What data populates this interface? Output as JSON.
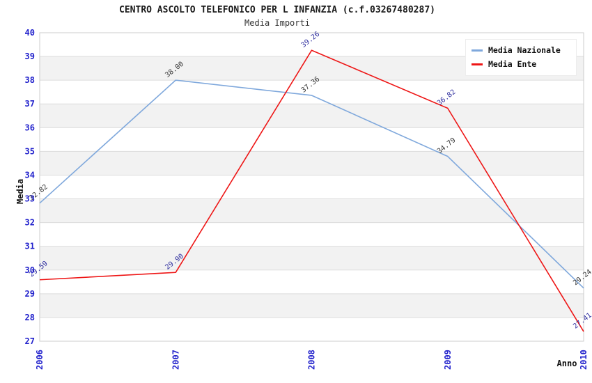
{
  "title": "CENTRO ASCOLTO TELEFONICO PER L INFANZIA (c.f.03267480287)",
  "subtitle": "Media Importi",
  "legend": {
    "position": "top-right",
    "items": [
      {
        "label": "Media Nazionale",
        "color": "#7FA8DC"
      },
      {
        "label": "Media Ente",
        "color": "#EE1616"
      }
    ]
  },
  "axes": {
    "y_label": "Media",
    "x_label": "Anno",
    "y_ticks": [
      27,
      28,
      29,
      30,
      31,
      32,
      33,
      34,
      35,
      36,
      37,
      38,
      39,
      40
    ],
    "x_ticks": [
      "2006",
      "2007",
      "2008",
      "2009",
      "2010"
    ],
    "tick_color": "#2222CC",
    "axis_title_color": "#111111"
  },
  "chart_data": {
    "type": "line",
    "title": "CENTRO ASCOLTO TELEFONICO PER L INFANZIA (c.f.03267480287)",
    "subtitle": "Media Importi",
    "xlabel": "Anno",
    "ylabel": "Media",
    "x": [
      "2006",
      "2007",
      "2008",
      "2009",
      "2010"
    ],
    "ylim": [
      27,
      40
    ],
    "grid": true,
    "legend_position": "top-right",
    "band_colors": {
      "even": "#F2F2F2",
      "odd": "#FFFFFF"
    },
    "gridline_color": "#DCDCDC",
    "plot_border_color": "#CCCCCC",
    "series": [
      {
        "name": "Media Nazionale",
        "values": [
          32.82,
          38.0,
          37.36,
          34.79,
          29.24
        ],
        "point_labels": [
          "32.82",
          "38.00",
          "37.36",
          "34.79",
          "29.24"
        ],
        "color": "#7FA8DC",
        "label_color": "#333333"
      },
      {
        "name": "Media Ente",
        "values": [
          29.59,
          29.9,
          39.26,
          36.82,
          27.41
        ],
        "point_labels": [
          "29.59",
          "29.90",
          "39.26",
          "36.82",
          "27.41"
        ],
        "color": "#EE1616",
        "label_color": "#2D2D9E"
      }
    ]
  }
}
